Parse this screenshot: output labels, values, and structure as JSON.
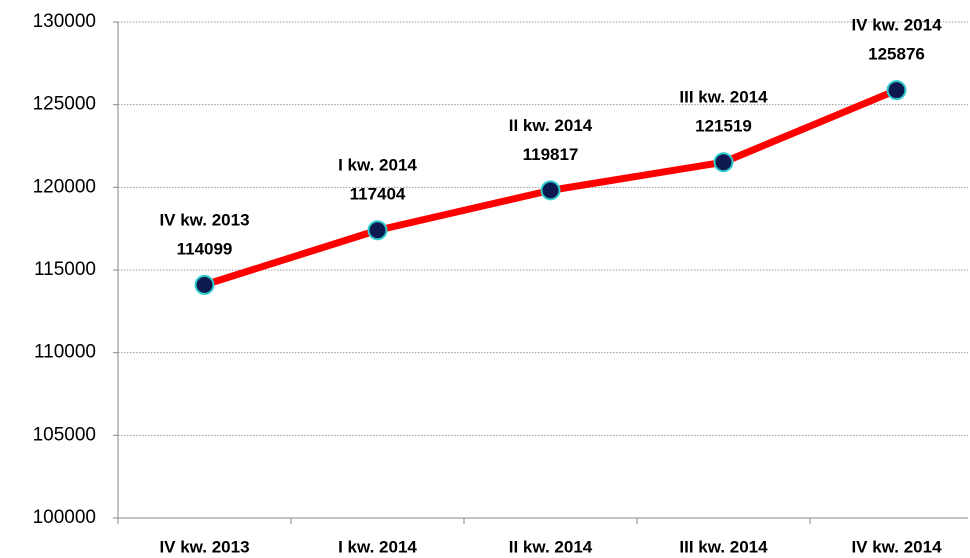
{
  "chart_data": {
    "type": "line",
    "categories": [
      "IV kw. 2013",
      "I kw. 2014",
      "II kw. 2014",
      "III kw. 2014",
      "IV kw. 2014"
    ],
    "series": [
      {
        "color": "#ff0000",
        "values": [
          114099,
          117404,
          119817,
          121519,
          125876
        ]
      }
    ],
    "marker_color": "#0d1a4f",
    "marker_edge_color": "#33cccc",
    "ylim": [
      100000,
      130000
    ],
    "yticks": [
      100000,
      105000,
      110000,
      115000,
      120000,
      125000,
      130000
    ],
    "grid": true
  }
}
